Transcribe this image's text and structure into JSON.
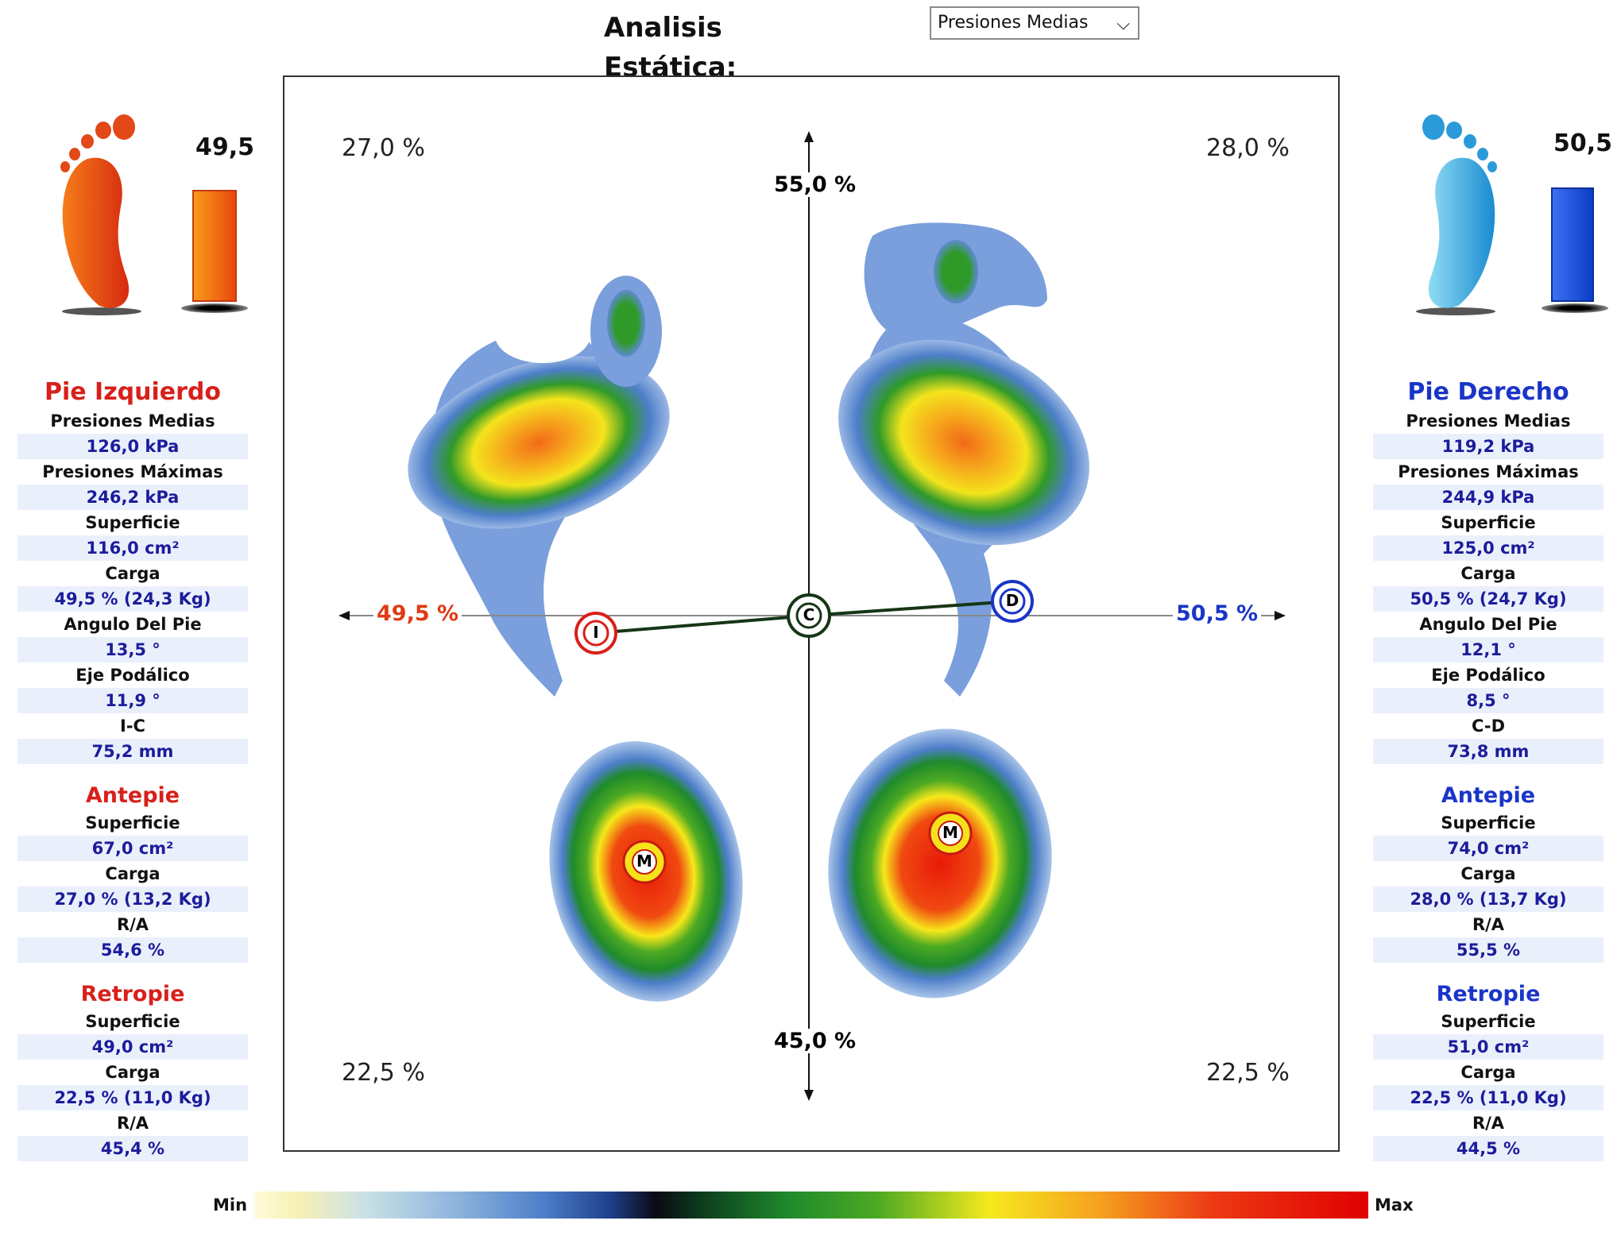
{
  "header": {
    "title": "Analisis Estática:",
    "select_value": "Presiones Medias"
  },
  "left_foot": {
    "bar_value": "49,5",
    "bar_fraction": 0.495,
    "title": "Pie Izquierdo",
    "rows": [
      {
        "label": "Presiones Medias",
        "value": "126,0 kPa"
      },
      {
        "label": "Presiones Máximas",
        "value": "246,2 kPa"
      },
      {
        "label": "Superficie",
        "value": "116,0 cm²"
      },
      {
        "label": "Carga",
        "value": "49,5 % (24,3 Kg)"
      },
      {
        "label": "Angulo Del Pie",
        "value": "13,5 °"
      },
      {
        "label": "Eje Podálico",
        "value": "11,9 °"
      },
      {
        "label": "I-C",
        "value": "75,2 mm"
      }
    ],
    "antepie": {
      "title": "Antepie",
      "rows": [
        {
          "label": "Superficie",
          "value": "67,0 cm²"
        },
        {
          "label": "Carga",
          "value": "27,0 % (13,2 Kg)"
        },
        {
          "label": "R/A",
          "value": "54,6 %"
        }
      ]
    },
    "retropie": {
      "title": "Retropie",
      "rows": [
        {
          "label": "Superficie",
          "value": "49,0 cm²"
        },
        {
          "label": "Carga",
          "value": "22,5 % (11,0 Kg)"
        },
        {
          "label": "R/A",
          "value": "45,4 %"
        }
      ]
    }
  },
  "right_foot": {
    "bar_value": "50,5",
    "bar_fraction": 0.505,
    "title": "Pie Derecho",
    "rows": [
      {
        "label": "Presiones Medias",
        "value": "119,2 kPa"
      },
      {
        "label": "Presiones Máximas",
        "value": "244,9 kPa"
      },
      {
        "label": "Superficie",
        "value": "125,0 cm²"
      },
      {
        "label": "Carga",
        "value": "50,5 % (24,7 Kg)"
      },
      {
        "label": "Angulo Del Pie",
        "value": "12,1 °"
      },
      {
        "label": "Eje Podálico",
        "value": "8,5 °"
      },
      {
        "label": "C-D",
        "value": "73,8 mm"
      }
    ],
    "antepie": {
      "title": "Antepie",
      "rows": [
        {
          "label": "Superficie",
          "value": "74,0 cm²"
        },
        {
          "label": "Carga",
          "value": "28,0 % (13,7 Kg)"
        },
        {
          "label": "R/A",
          "value": "55,5 %"
        }
      ]
    },
    "retropie": {
      "title": "Retropie",
      "rows": [
        {
          "label": "Superficie",
          "value": "51,0 cm²"
        },
        {
          "label": "Carga",
          "value": "22,5 % (11,0 Kg)"
        },
        {
          "label": "R/A",
          "value": "44,5 %"
        }
      ]
    }
  },
  "plot": {
    "top_left": "27,0 %",
    "top_right": "28,0 %",
    "bottom_left": "22,5 %",
    "bottom_right": "22,5 %",
    "axis_top": "55,0 %",
    "axis_bottom": "45,0 %",
    "axis_left": "49,5 %",
    "axis_right": "50,5 %",
    "marker_left": "I",
    "marker_center": "C",
    "marker_right": "D",
    "marker_m": "M"
  },
  "colorbar": {
    "min": "Min",
    "max": "Max"
  },
  "colors": {
    "left": "#d8201a",
    "right": "#1a35c8"
  }
}
